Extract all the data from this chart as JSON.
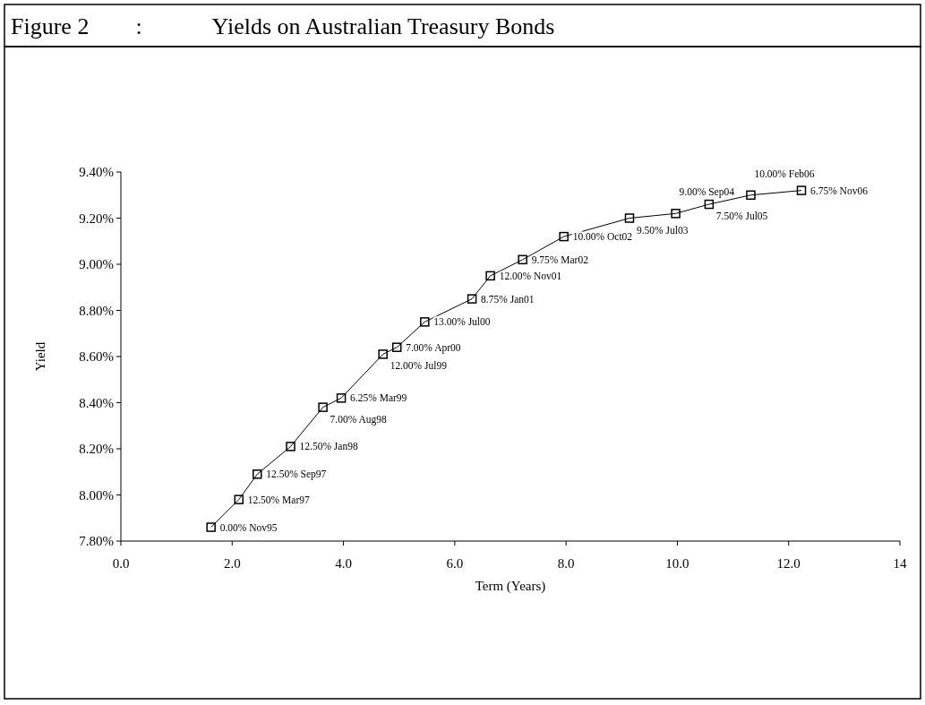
{
  "chart_data": {
    "type": "line",
    "title": "Figure 2  :   Yields on Australian Treasury Bonds",
    "xlabel": "Term (Years)",
    "ylabel": "Yield",
    "marker": "square",
    "line_style": "solid",
    "grid": false,
    "series": [
      {
        "color": "#000000",
        "x": [
          1.62,
          2.12,
          2.45,
          3.05,
          3.63,
          3.96,
          4.71,
          4.96,
          5.46,
          6.31,
          6.64,
          7.22,
          7.96,
          9.14,
          9.97,
          10.57,
          11.32,
          12.23
        ],
        "values": [
          7.86,
          7.98,
          8.09,
          8.21,
          8.38,
          8.42,
          8.61,
          8.64,
          8.75,
          8.85,
          8.95,
          9.02,
          9.12,
          9.2,
          9.22,
          9.26,
          9.3,
          9.32
        ]
      }
    ],
    "annotations": [
      {
        "text": "0.00% Nov95",
        "x": 1.62,
        "y": 7.86
      },
      {
        "text": "12.50% Mar97",
        "x": 2.12,
        "y": 7.98
      },
      {
        "text": "12.50% Sep97",
        "x": 2.45,
        "y": 8.09
      },
      {
        "text": "12.50% Jan98",
        "x": 3.05,
        "y": 8.21
      },
      {
        "text": "7.00% Aug98",
        "x": 3.63,
        "y": 8.38
      },
      {
        "text": "6.25% Mar99",
        "x": 3.96,
        "y": 8.42
      },
      {
        "text": "12.00% Jul99",
        "x": 4.71,
        "y": 8.61
      },
      {
        "text": "7.00% Apr00",
        "x": 4.96,
        "y": 8.64
      },
      {
        "text": "13.00% Jul00",
        "x": 5.46,
        "y": 8.75
      },
      {
        "text": "8.75% Jan01",
        "x": 6.31,
        "y": 8.85
      },
      {
        "text": "12.00% Nov01",
        "x": 6.64,
        "y": 8.95
      },
      {
        "text": "9.75% Mar02",
        "x": 7.22,
        "y": 9.02
      },
      {
        "text": "10.00% Oct02",
        "x": 7.96,
        "y": 9.12
      },
      {
        "text": "9.50% Jul03",
        "x": 9.14,
        "y": 9.2
      },
      {
        "text": "9.00% Sep04",
        "x": 9.97,
        "y": 9.22
      },
      {
        "text": "7.50% Jul05",
        "x": 10.57,
        "y": 9.26
      },
      {
        "text": "10.00% Feb06",
        "x": 11.32,
        "y": 9.3
      },
      {
        "text": "6.75% Nov06",
        "x": 12.23,
        "y": 9.32
      }
    ],
    "xlim": [
      0,
      14
    ],
    "xticks": [
      {
        "value": 0,
        "label": "0.0"
      },
      {
        "value": 2,
        "label": "2.0"
      },
      {
        "value": 4,
        "label": "4.0"
      },
      {
        "value": 6,
        "label": "6.0"
      },
      {
        "value": 8,
        "label": "8.0"
      },
      {
        "value": 10,
        "label": "10.0"
      },
      {
        "value": 12,
        "label": "12.0"
      },
      14
    ],
    "ylim": [
      7.8,
      9.4
    ],
    "yticks": [
      {
        "value": 7.8,
        "label": "7.80%"
      },
      {
        "value": 8,
        "label": "8.00%"
      },
      {
        "value": 8.2,
        "label": "8.20%"
      },
      {
        "value": 8.4,
        "label": "8.40%"
      },
      {
        "value": 8.6,
        "label": "8.60%"
      },
      {
        "value": 8.8,
        "label": "8.80%"
      },
      {
        "value": 9,
        "label": "9.00%"
      },
      {
        "value": 9.2,
        "label": "9.20%"
      },
      {
        "value": 9.4,
        "label": "9.40%"
      }
    ]
  }
}
